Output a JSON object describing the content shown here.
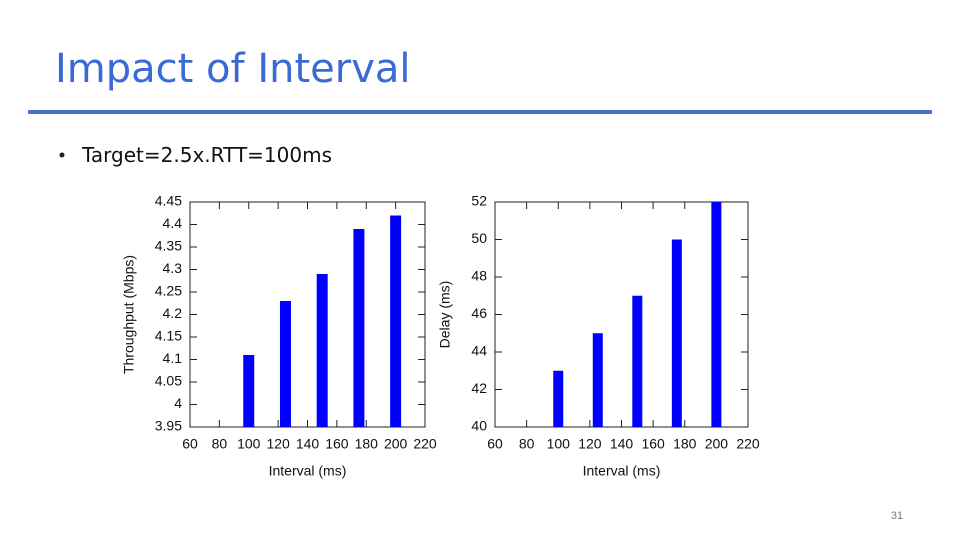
{
  "title": "Impact of Interval",
  "bullet": "Target=2.5x.RTT=100ms",
  "page_number": "31",
  "chart_data": [
    {
      "type": "bar",
      "xlabel": "Interval (ms)",
      "ylabel": "Throughput (Mbps)",
      "x": [
        100,
        125,
        150,
        175,
        200
      ],
      "values": [
        4.11,
        4.23,
        4.29,
        4.39,
        4.42
      ],
      "color": "#0000ff",
      "xlim": [
        60,
        220
      ],
      "xticks": [
        60,
        80,
        100,
        120,
        140,
        160,
        180,
        200,
        220
      ],
      "ylim": [
        3.95,
        4.45
      ],
      "yticks": [
        3.95,
        4,
        4.05,
        4.1,
        4.15,
        4.2,
        4.25,
        4.3,
        4.35,
        4.4,
        4.45
      ]
    },
    {
      "type": "bar",
      "xlabel": "Interval (ms)",
      "ylabel": "Delay (ms)",
      "x": [
        100,
        125,
        150,
        175,
        200
      ],
      "values": [
        43,
        45,
        47,
        50,
        52
      ],
      "color": "#0000ff",
      "xlim": [
        60,
        220
      ],
      "xticks": [
        60,
        80,
        100,
        120,
        140,
        160,
        180,
        200,
        220
      ],
      "ylim": [
        40,
        52
      ],
      "yticks": [
        40,
        42,
        44,
        46,
        48,
        50,
        52
      ]
    }
  ]
}
